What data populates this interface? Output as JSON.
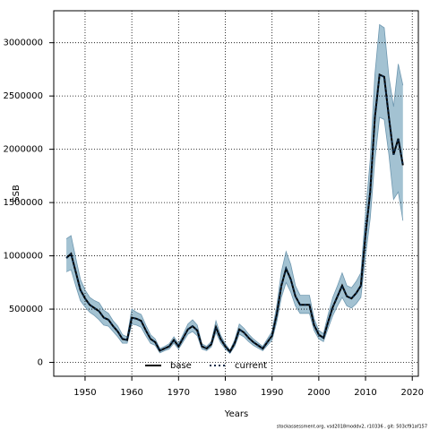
{
  "chart_data": {
    "type": "line",
    "x_label": "Years",
    "y_label": "SSB",
    "footer": "stockassessment.org, vsd2018moddv2, r10336 , git: 503cf91af157",
    "x": [
      1946,
      1947,
      1948,
      1949,
      1950,
      1951,
      1952,
      1953,
      1954,
      1955,
      1956,
      1957,
      1958,
      1959,
      1960,
      1961,
      1962,
      1963,
      1964,
      1965,
      1966,
      1967,
      1968,
      1969,
      1970,
      1971,
      1972,
      1973,
      1974,
      1975,
      1976,
      1977,
      1978,
      1979,
      1980,
      1981,
      1982,
      1983,
      1984,
      1985,
      1986,
      1987,
      1988,
      1989,
      1990,
      1991,
      1992,
      1993,
      1994,
      1995,
      1996,
      1997,
      1998,
      1999,
      2000,
      2001,
      2002,
      2003,
      2004,
      2005,
      2006,
      2007,
      2008,
      2009,
      2010,
      2011,
      2012,
      2013,
      2014,
      2015,
      2016,
      2017,
      2018
    ],
    "series": [
      {
        "name": "base",
        "color": "#000000",
        "dash": "none",
        "values": [
          980000,
          1020000,
          850000,
          680000,
          600000,
          540000,
          510000,
          480000,
          420000,
          400000,
          340000,
          290000,
          220000,
          210000,
          420000,
          410000,
          390000,
          300000,
          220000,
          190000,
          110000,
          130000,
          150000,
          210000,
          150000,
          230000,
          310000,
          340000,
          300000,
          150000,
          130000,
          170000,
          330000,
          220000,
          150000,
          100000,
          180000,
          310000,
          280000,
          230000,
          190000,
          160000,
          130000,
          190000,
          250000,
          450000,
          720000,
          880000,
          780000,
          620000,
          540000,
          540000,
          540000,
          350000,
          260000,
          230000,
          380000,
          520000,
          620000,
          720000,
          620000,
          600000,
          650000,
          720000,
          1200000,
          1600000,
          2300000,
          2700000,
          2680000,
          2300000,
          1950000,
          2100000,
          1850000
        ]
      },
      {
        "name": "current",
        "color": "#0b2a4a",
        "dash": "2,3",
        "values": [
          980000,
          1020000,
          850000,
          680000,
          600000,
          540000,
          510000,
          480000,
          420000,
          400000,
          340000,
          290000,
          220000,
          210000,
          420000,
          410000,
          390000,
          300000,
          220000,
          190000,
          110000,
          130000,
          150000,
          210000,
          150000,
          230000,
          310000,
          340000,
          300000,
          150000,
          130000,
          170000,
          330000,
          220000,
          150000,
          100000,
          180000,
          310000,
          280000,
          230000,
          190000,
          160000,
          130000,
          190000,
          250000,
          450000,
          720000,
          880000,
          780000,
          620000,
          540000,
          540000,
          540000,
          350000,
          260000,
          230000,
          380000,
          520000,
          620000,
          720000,
          620000,
          600000,
          650000,
          720000,
          1200000,
          1600000,
          2300000,
          2700000,
          2680000,
          2300000,
          1950000,
          2100000,
          1850000
        ]
      }
    ],
    "band": {
      "color": "#a3c2d2",
      "edge": "#6f98b0",
      "lower": [
        850000,
        870000,
        720000,
        580000,
        520000,
        470000,
        440000,
        400000,
        350000,
        340000,
        290000,
        240000,
        180000,
        180000,
        360000,
        350000,
        330000,
        250000,
        180000,
        160000,
        90000,
        110000,
        125000,
        180000,
        125000,
        195000,
        265000,
        290000,
        250000,
        125000,
        110000,
        145000,
        280000,
        185000,
        125000,
        85000,
        150000,
        265000,
        240000,
        195000,
        160000,
        135000,
        110000,
        160000,
        210000,
        380000,
        610000,
        750000,
        660000,
        530000,
        460000,
        460000,
        460000,
        300000,
        220000,
        195000,
        320000,
        440000,
        530000,
        610000,
        530000,
        510000,
        550000,
        610000,
        1000000,
        1350000,
        1900000,
        2300000,
        2280000,
        1950000,
        1530000,
        1600000,
        1330000
      ],
      "upper": [
        1160000,
        1190000,
        980000,
        780000,
        680000,
        610000,
        580000,
        560000,
        490000,
        460000,
        390000,
        340000,
        260000,
        240000,
        500000,
        470000,
        450000,
        350000,
        260000,
        220000,
        130000,
        150000,
        175000,
        240000,
        175000,
        265000,
        360000,
        400000,
        350000,
        175000,
        150000,
        195000,
        390000,
        255000,
        175000,
        115000,
        210000,
        360000,
        320000,
        265000,
        220000,
        185000,
        150000,
        220000,
        290000,
        530000,
        850000,
        1040000,
        920000,
        720000,
        630000,
        630000,
        630000,
        410000,
        300000,
        270000,
        450000,
        610000,
        720000,
        840000,
        720000,
        700000,
        760000,
        840000,
        1400000,
        1900000,
        2700000,
        3170000,
        3140000,
        2680000,
        2400000,
        2800000,
        2600000
      ]
    },
    "xlim": [
      1943.3,
      2021.3
    ],
    "xticks": [
      1950,
      1960,
      1970,
      1980,
      1990,
      2000,
      2010,
      2020
    ],
    "ylim": [
      -130000,
      3300000
    ],
    "yticks": [
      0,
      500000,
      1000000,
      1500000,
      2000000,
      2500000,
      3000000
    ],
    "grid": true,
    "legend": "bottom"
  }
}
